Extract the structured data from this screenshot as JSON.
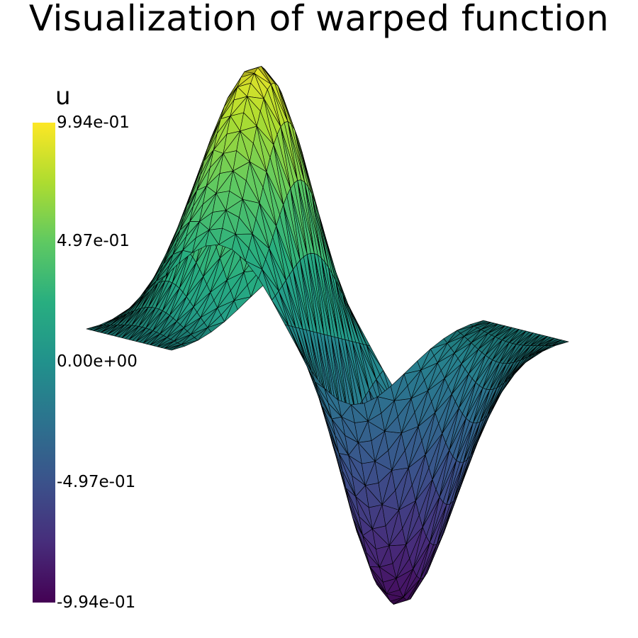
{
  "title": "Visualization of warped function",
  "colorbar": {
    "field": "u",
    "labels": [
      "9.94e-01",
      "4.97e-01",
      "0.00e+00",
      "-4.97e-01",
      "-9.94e-01"
    ],
    "min": -0.994,
    "max": 0.994,
    "colormap": "viridis",
    "stops": [
      "#440154",
      "#472d7b",
      "#3b528b",
      "#2c728e",
      "#21918c",
      "#28ae80",
      "#5ec962",
      "#addc30",
      "#fde725"
    ]
  },
  "surface": {
    "type": "warped triangulated mesh",
    "edge_color": "#000000"
  }
}
